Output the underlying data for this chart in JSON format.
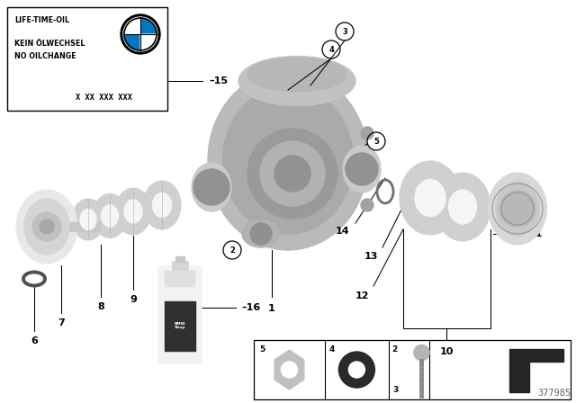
{
  "bg_color": "#ffffff",
  "diagram_number": "377985",
  "bmw_blue": "#0077BE",
  "housing_color": "#b8bbb8",
  "ring_color": "#cacaca",
  "ring_inner_color": "#f0f0f0",
  "hub_color": "#e8e8e8",
  "shaft_color": "#d8d8d8",
  "bottle_label_color": "#383838",
  "label_fs": 8,
  "info_lines": [
    "LIFE-TIME-OIL",
    "KEIN ÖLWECHSEL",
    "NO OILCHANGE",
    "X XX XXX XXX"
  ]
}
